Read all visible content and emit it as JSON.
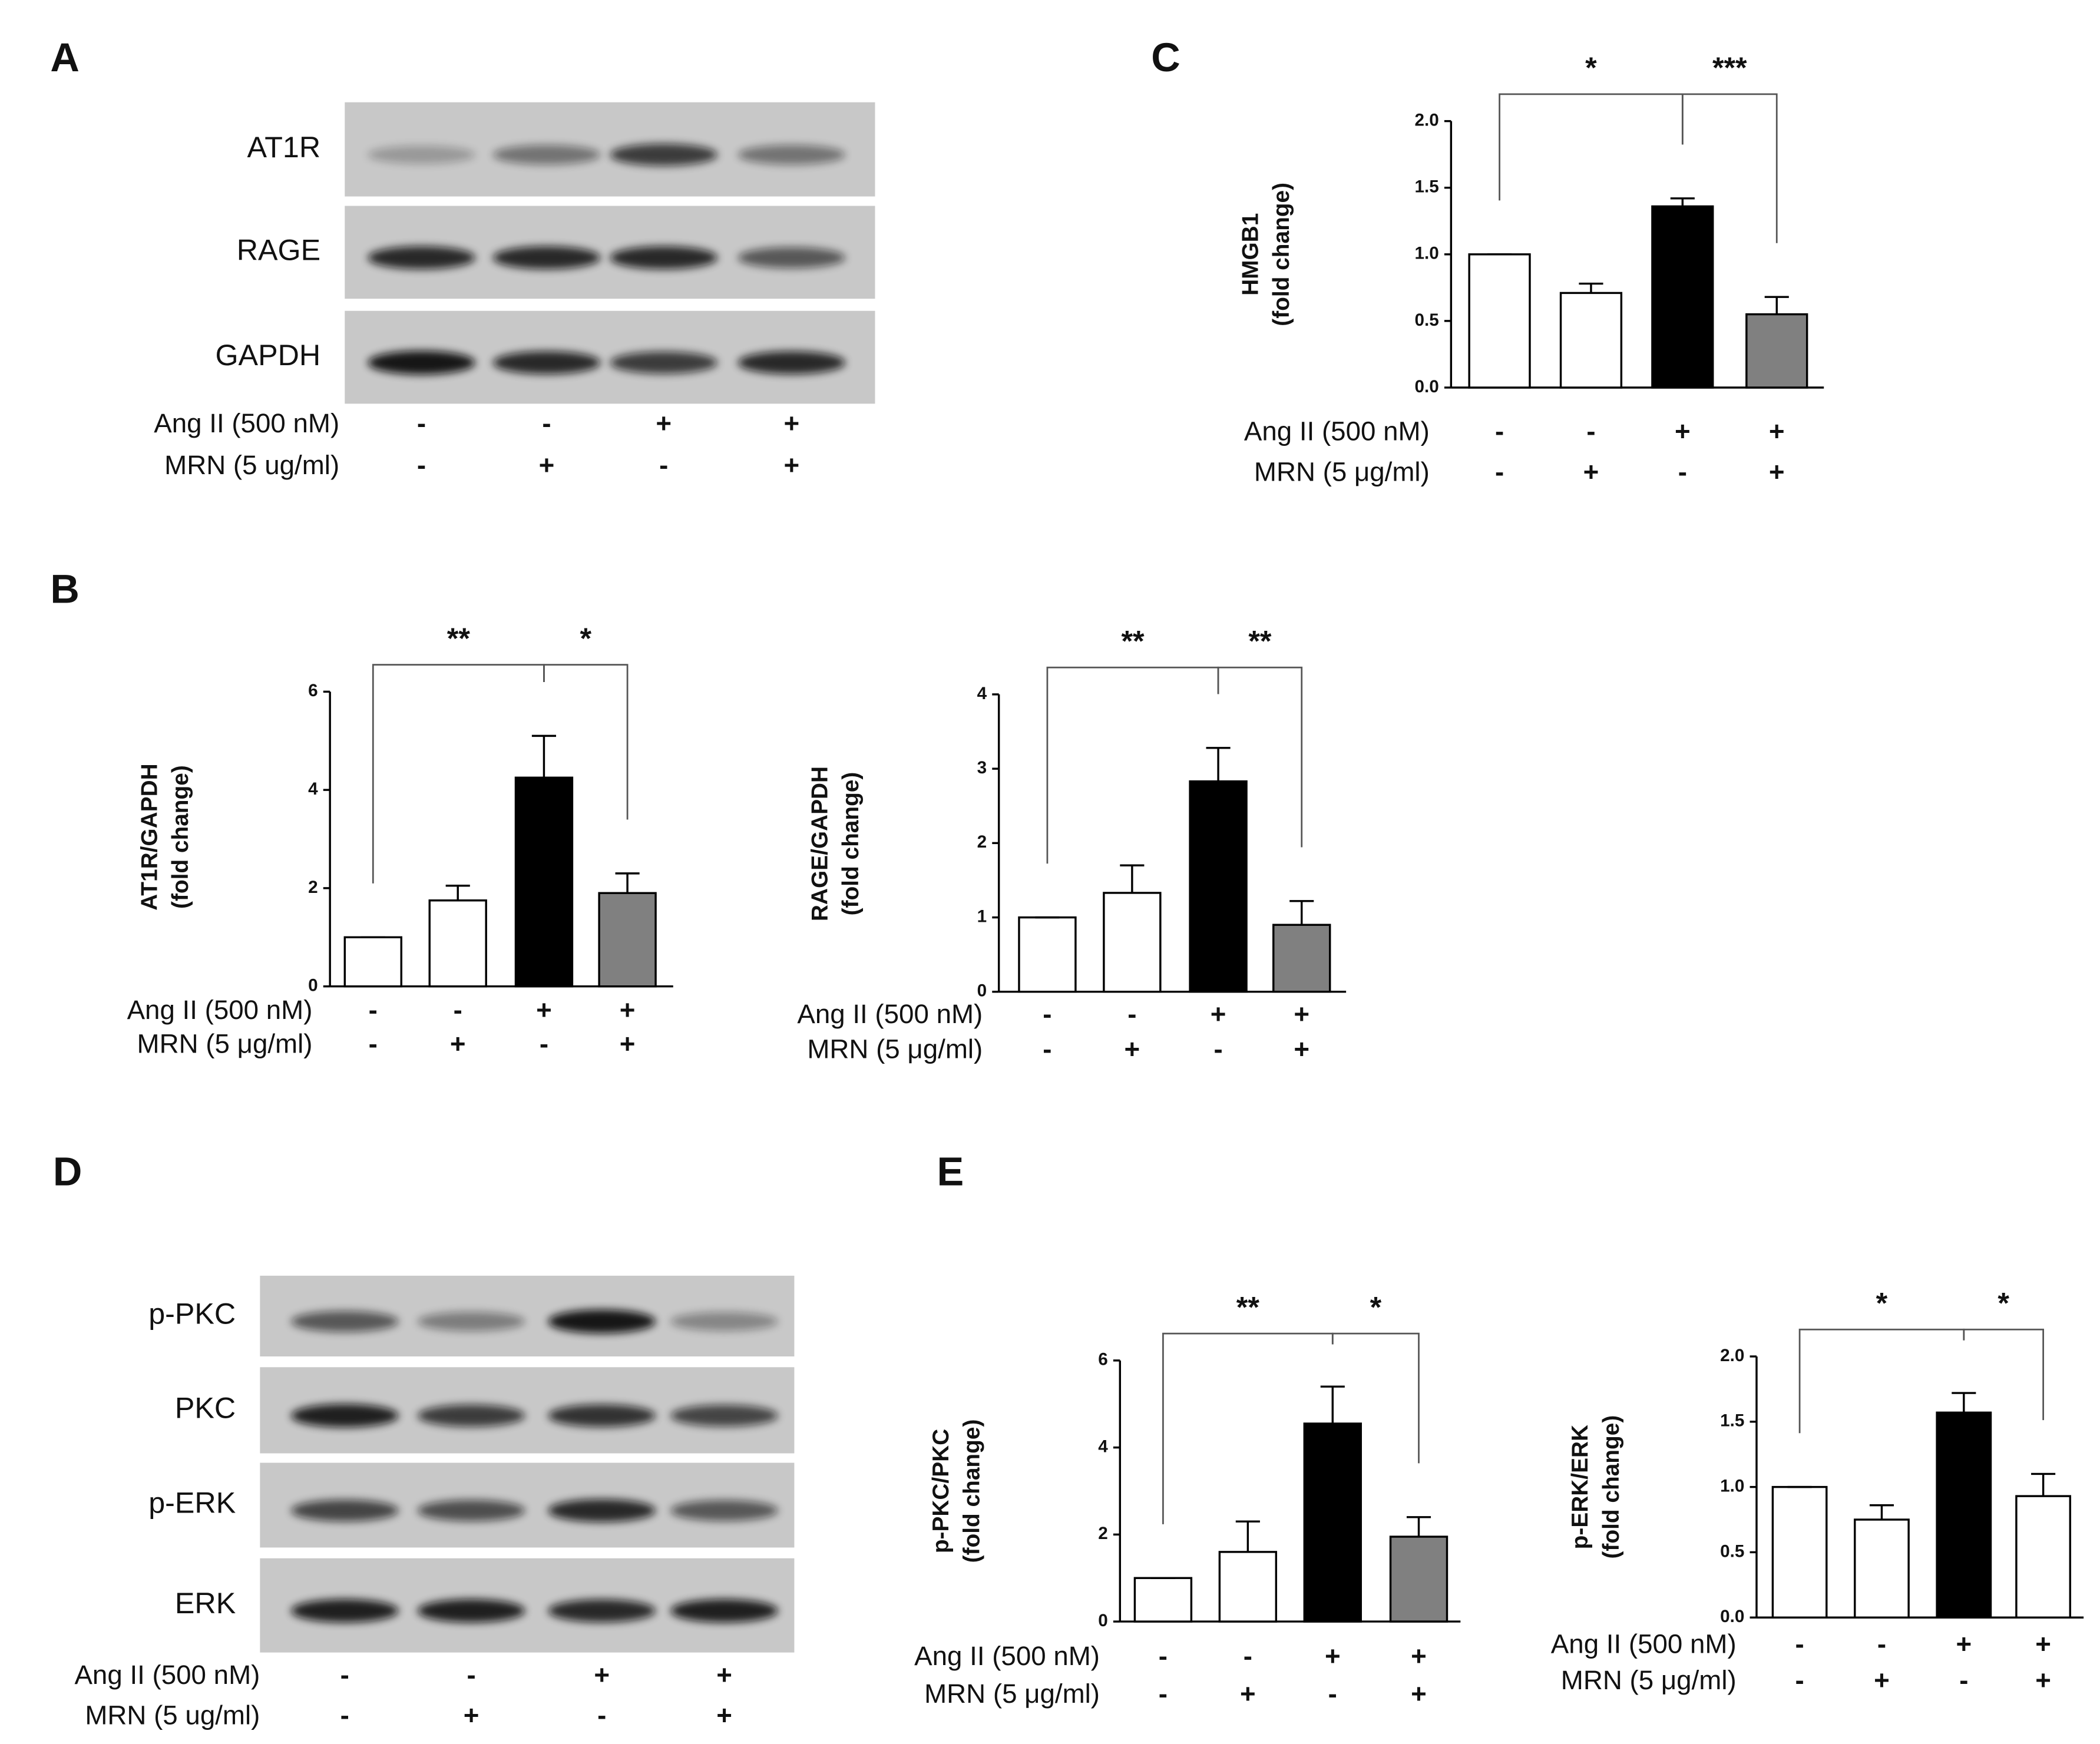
{
  "panel_labels": [
    "A",
    "B",
    "C",
    "D",
    "E"
  ],
  "blots": [
    {
      "bands": [
        "AT1R",
        "RAGE",
        "GAPDH"
      ],
      "conditions": [
        {
          "name": "Ang II (500 nM)",
          "signs": [
            "-",
            "-",
            "+",
            "+"
          ]
        },
        {
          "name": "MRN (5 ug/ml)",
          "signs": [
            "-",
            "+",
            "-",
            "+"
          ]
        }
      ]
    },
    {
      "bands": [
        "p-PKC",
        "PKC",
        "p-ERK",
        "ERK"
      ],
      "conditions": [
        {
          "name": "Ang II (500 nM)",
          "signs": [
            "-",
            "-",
            "+",
            "+"
          ]
        },
        {
          "name": "MRN (5 ug/ml)",
          "signs": [
            "-",
            "+",
            "-",
            "+"
          ]
        }
      ]
    }
  ],
  "chart_data": [
    {
      "type": "bar",
      "y_label": [
        "AT1R/GAPDH",
        "(fold change)"
      ],
      "values": [
        1,
        1.75,
        4.25,
        1.9
      ],
      "errors": [
        0,
        0.3,
        0.85,
        0.4
      ],
      "colors": [
        "#ffffff",
        "#ffffff",
        "#000000",
        "#808080"
      ],
      "ylim": [
        0,
        6
      ],
      "yticks": [
        0,
        2,
        4,
        6
      ],
      "annotations": [
        {
          "label": "**",
          "span": [
            0,
            2
          ]
        },
        {
          "label": "*",
          "span": [
            2,
            3
          ]
        }
      ],
      "conditions": [
        {
          "name": "Ang II (500 nM)",
          "signs": [
            "-",
            "-",
            "+",
            "+"
          ]
        },
        {
          "name": "MRN (5 μg/ml)",
          "signs": [
            "-",
            "+",
            "-",
            "+"
          ]
        }
      ]
    },
    {
      "type": "bar",
      "y_label": [
        "RAGE/GAPDH",
        "(fold change)"
      ],
      "values": [
        1,
        1.33,
        2.83,
        0.9
      ],
      "errors": [
        0,
        0.37,
        0.45,
        0.32
      ],
      "colors": [
        "#ffffff",
        "#ffffff",
        "#000000",
        "#808080"
      ],
      "ylim": [
        0,
        4
      ],
      "yticks": [
        0,
        1,
        2,
        3,
        4
      ],
      "annotations": [
        {
          "label": "**",
          "span": [
            0,
            2
          ]
        },
        {
          "label": "**",
          "span": [
            2,
            3
          ]
        }
      ],
      "conditions": [
        {
          "name": "Ang II (500 nM)",
          "signs": [
            "-",
            "-",
            "+",
            "+"
          ]
        },
        {
          "name": "MRN (5 μg/ml)",
          "signs": [
            "-",
            "+",
            "-",
            "+"
          ]
        }
      ]
    },
    {
      "type": "bar",
      "y_label": [
        "HMGB1",
        "(fold change)"
      ],
      "values": [
        1,
        0.71,
        1.36,
        0.55
      ],
      "errors": [
        0,
        0.07,
        0.06,
        0.13
      ],
      "colors": [
        "#ffffff",
        "#ffffff",
        "#000000",
        "#808080"
      ],
      "ylim": [
        0,
        2
      ],
      "yticks": [
        {
          "value": 0,
          "label": "0.0"
        },
        0.5,
        {
          "value": 1,
          "label": "1.0"
        },
        1.5,
        {
          "value": 2,
          "label": "2.0"
        }
      ],
      "annotations": [
        {
          "label": "*",
          "span": [
            0,
            2
          ]
        },
        {
          "label": "***",
          "span": [
            2,
            3
          ]
        }
      ],
      "conditions": [
        {
          "name": "Ang II (500 nM)",
          "signs": [
            "-",
            "-",
            "+",
            "+"
          ]
        },
        {
          "name": "MRN (5 μg/ml)",
          "signs": [
            "-",
            "+",
            "-",
            "+"
          ]
        }
      ]
    },
    {
      "type": "bar",
      "y_label": [
        "p-PKC/PKC",
        "(fold change)"
      ],
      "values": [
        1,
        1.6,
        4.55,
        1.95
      ],
      "errors": [
        0,
        0.7,
        0.85,
        0.45
      ],
      "colors": [
        "#ffffff",
        "#ffffff",
        "#000000",
        "#808080"
      ],
      "ylim": [
        0,
        6
      ],
      "yticks": [
        0,
        2,
        4,
        6
      ],
      "annotations": [
        {
          "label": "**",
          "span": [
            0,
            2
          ]
        },
        {
          "label": "*",
          "span": [
            2,
            3
          ]
        }
      ],
      "conditions": [
        {
          "name": "Ang II (500 nM)",
          "signs": [
            "-",
            "-",
            "+",
            "+"
          ]
        },
        {
          "name": "MRN (5 μg/ml)",
          "signs": [
            "-",
            "+",
            "-",
            "+"
          ]
        }
      ]
    },
    {
      "type": "bar",
      "y_label": [
        "p-ERK/ERK",
        "(fold change)"
      ],
      "values": [
        1,
        0.75,
        1.57,
        0.93
      ],
      "errors": [
        0,
        0.11,
        0.15,
        0.17
      ],
      "colors": [
        "#ffffff",
        "#ffffff",
        "#000000",
        "#ffffff"
      ],
      "ylim": [
        0,
        2
      ],
      "yticks": [
        {
          "value": 0,
          "label": "0.0"
        },
        0.5,
        {
          "value": 1,
          "label": "1.0"
        },
        1.5,
        {
          "value": 2,
          "label": "2.0"
        }
      ],
      "annotations": [
        {
          "label": "*",
          "span": [
            0,
            2
          ]
        },
        {
          "label": "*",
          "span": [
            2,
            3
          ]
        }
      ],
      "conditions": [
        {
          "name": "Ang II (500 nM)",
          "signs": [
            "-",
            "-",
            "+",
            "+"
          ]
        },
        {
          "name": "MRN (5 μg/ml)",
          "signs": [
            "-",
            "+",
            "-",
            "+"
          ]
        }
      ]
    }
  ]
}
